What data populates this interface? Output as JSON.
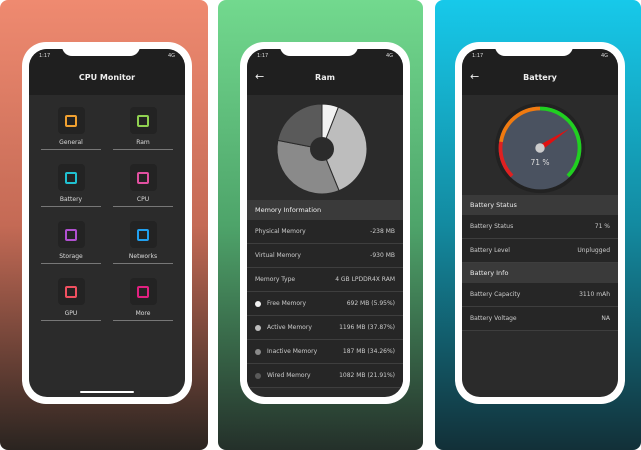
{
  "status": {
    "time": "1:17",
    "network": "4G"
  },
  "screen1": {
    "title": "CPU Monitor",
    "items": [
      {
        "label": "General",
        "icon": "phone-icon",
        "color": "#f0a030"
      },
      {
        "label": "Ram",
        "icon": "ram-icon",
        "color": "#8fd050"
      },
      {
        "label": "Battery",
        "icon": "battery-icon",
        "color": "#20c0d0"
      },
      {
        "label": "CPU",
        "icon": "cpu-icon",
        "color": "#e050a0"
      },
      {
        "label": "Storage",
        "icon": "hard-drive-icon",
        "color": "#b050d0"
      },
      {
        "label": "Networks",
        "icon": "cloud-network-icon",
        "color": "#20a0f0"
      },
      {
        "label": "GPU",
        "icon": "gpu-icon",
        "color": "#f05060"
      },
      {
        "label": "More",
        "icon": "grid-icon",
        "color": "#e02080"
      }
    ]
  },
  "screen2": {
    "title": "Ram",
    "section": "Memory Information",
    "rows": [
      {
        "label": "Physical Memory",
        "value": "-238 MB"
      },
      {
        "label": "Virtual Memory",
        "value": "-930 MB"
      },
      {
        "label": "Memory Type",
        "value": "4 GB LPDDR4X RAM"
      }
    ],
    "memory": [
      {
        "label": "Free Memory",
        "value": "692 MB (5.95%)",
        "percent": 5.95,
        "color": "#f2f2f2"
      },
      {
        "label": "Active Memory",
        "value": "1196 MB (37.87%)",
        "percent": 37.87,
        "color": "#bdbdbd"
      },
      {
        "label": "Inactive Memory",
        "value": "187 MB (34.26%)",
        "percent": 34.26,
        "color": "#8a8a8a"
      },
      {
        "label": "Wired Memory",
        "value": "1082 MB (21.91%)",
        "percent": 21.91,
        "color": "#5a5a5a"
      }
    ]
  },
  "screen3": {
    "title": "Battery",
    "gauge_value": 71,
    "gauge_label": "71 %",
    "sections": [
      {
        "title": "Battery Status",
        "rows": [
          {
            "label": "Battery Status",
            "value": "71 %"
          },
          {
            "label": "Battery Level",
            "value": "Unplugged"
          }
        ]
      },
      {
        "title": "Battery Info",
        "rows": [
          {
            "label": "Battery Capacity",
            "value": "3110 mAh"
          },
          {
            "label": "Battery Voltage",
            "value": "NA"
          }
        ]
      }
    ]
  }
}
